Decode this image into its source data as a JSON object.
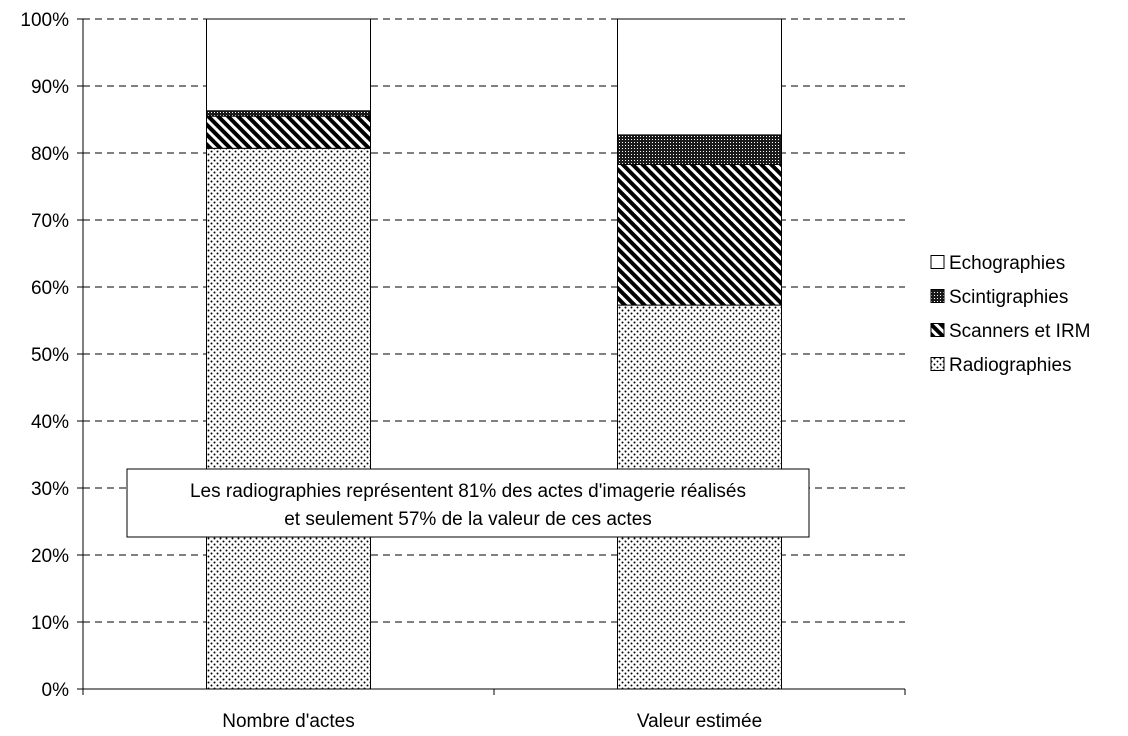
{
  "chart_data": {
    "type": "bar",
    "stacked": true,
    "title": "",
    "xlabel": "",
    "ylabel": "",
    "ylim": [
      0,
      100
    ],
    "y_tick_format": "percent",
    "y_ticks": [
      "0%",
      "10%",
      "20%",
      "30%",
      "40%",
      "50%",
      "60%",
      "70%",
      "80%",
      "90%",
      "100%"
    ],
    "grid": "dashed-horizontal",
    "legend_position": "right",
    "categories": [
      "Nombre d'actes",
      "Valeur estimée"
    ],
    "series": [
      {
        "name": "Radiographies",
        "values": [
          80.7,
          57.3
        ],
        "pattern": "dots"
      },
      {
        "name": "Scanners et IRM",
        "values": [
          4.8,
          21.0
        ],
        "pattern": "diagonal-hatch"
      },
      {
        "name": "Scintigraphies",
        "values": [
          0.8,
          4.4
        ],
        "pattern": "dense-dark"
      },
      {
        "name": "Echographies",
        "values": [
          13.7,
          17.3
        ],
        "pattern": "white"
      }
    ],
    "legend_order": [
      "Echographies",
      "Scintigraphies",
      "Scanners et IRM",
      "Radiographies"
    ],
    "annotation": {
      "lines": [
        "Les radiographies représentent 81% des actes d'imagerie réalisés",
        "et seulement 57% de la valeur de ces actes"
      ]
    }
  }
}
